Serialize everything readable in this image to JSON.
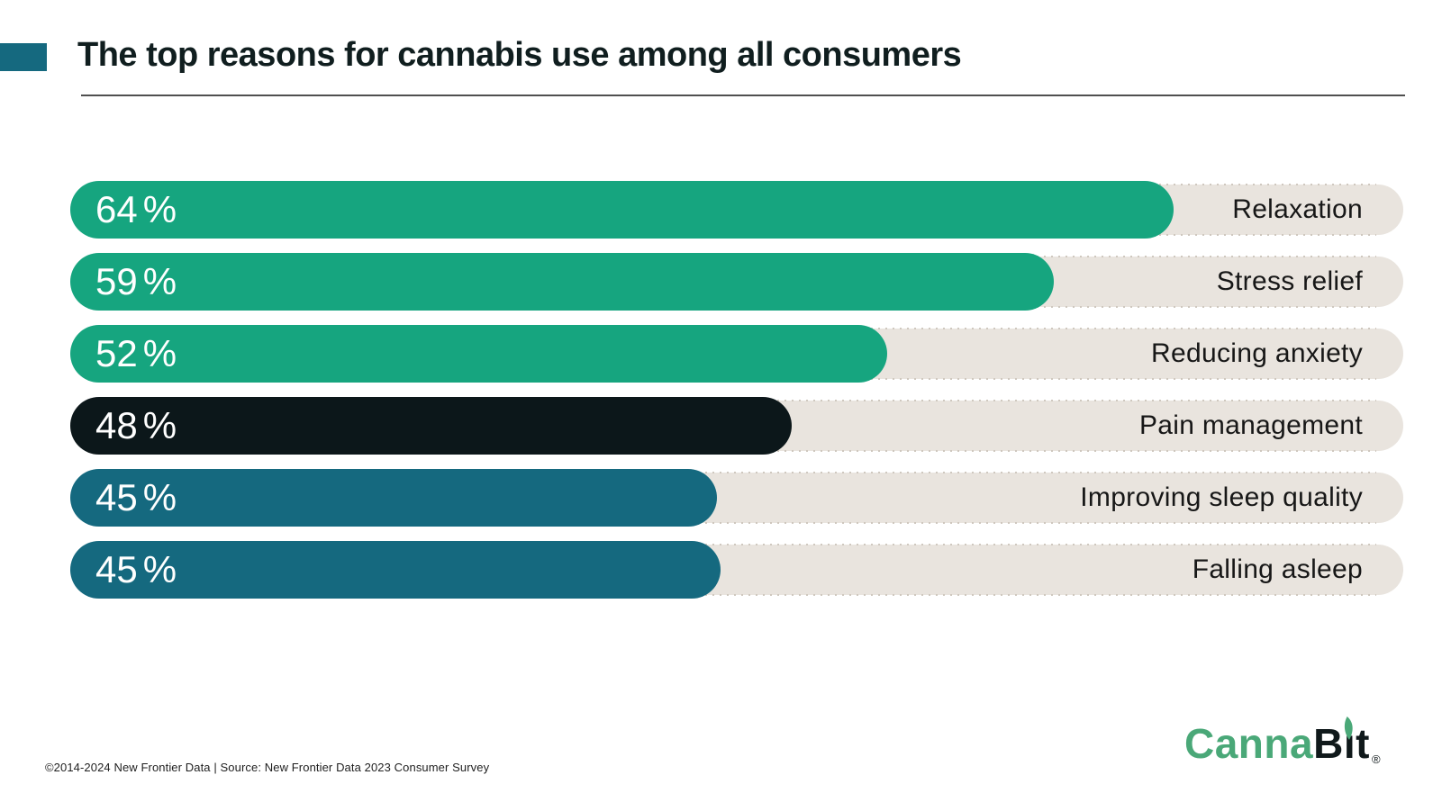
{
  "header": {
    "accent_color": "#15697F",
    "title": "The top reasons for cannabis use among all consumers"
  },
  "chart_data": {
    "type": "bar",
    "orientation": "horizontal",
    "title": "The top reasons for cannabis use among all consumers",
    "unit": "%",
    "xlim": [
      0,
      100
    ],
    "grid": false,
    "legend": "none",
    "categories": [
      "Relaxation",
      "Stress relief",
      "Reducing anxiety",
      "Pain management",
      "Improving sleep quality",
      "Falling asleep"
    ],
    "values": [
      64,
      59,
      52,
      48,
      45,
      45
    ],
    "track_color": "#E9E4DE",
    "value_label_color": "#FFFFFF",
    "category_label_color": "#171717",
    "palette": {
      "green": "#16A57F",
      "black": "#0C171A",
      "teal": "#15697F"
    },
    "rows": [
      {
        "label": "Relaxation",
        "value": 64,
        "bar_color": "#16A57F",
        "display_width_pct": 82.8
      },
      {
        "label": "Stress relief",
        "value": 59,
        "bar_color": "#16A57F",
        "display_width_pct": 73.8
      },
      {
        "label": "Reducing anxiety",
        "value": 52,
        "bar_color": "#16A57F",
        "display_width_pct": 61.3
      },
      {
        "label": "Pain management",
        "value": 48,
        "bar_color": "#0C171A",
        "display_width_pct": 54.1
      },
      {
        "label": "Improving sleep quality",
        "value": 45,
        "bar_color": "#15697F",
        "display_width_pct": 48.5
      },
      {
        "label": "Falling asleep",
        "value": 45,
        "bar_color": "#15697F",
        "display_width_pct": 48.8
      }
    ]
  },
  "footer": {
    "copyright": "©2014-2024  New Frontier Data | Source: New Frontier Data 2023 Consumer Survey",
    "logo": {
      "brand_text": "CannaBit",
      "brand_green": "Canna",
      "brand_dark_b": "B",
      "brand_dark_i": "ı",
      "brand_dark_t": "t",
      "registered": "®",
      "green_color": "#4AA878",
      "dark_color": "#10191B"
    }
  }
}
